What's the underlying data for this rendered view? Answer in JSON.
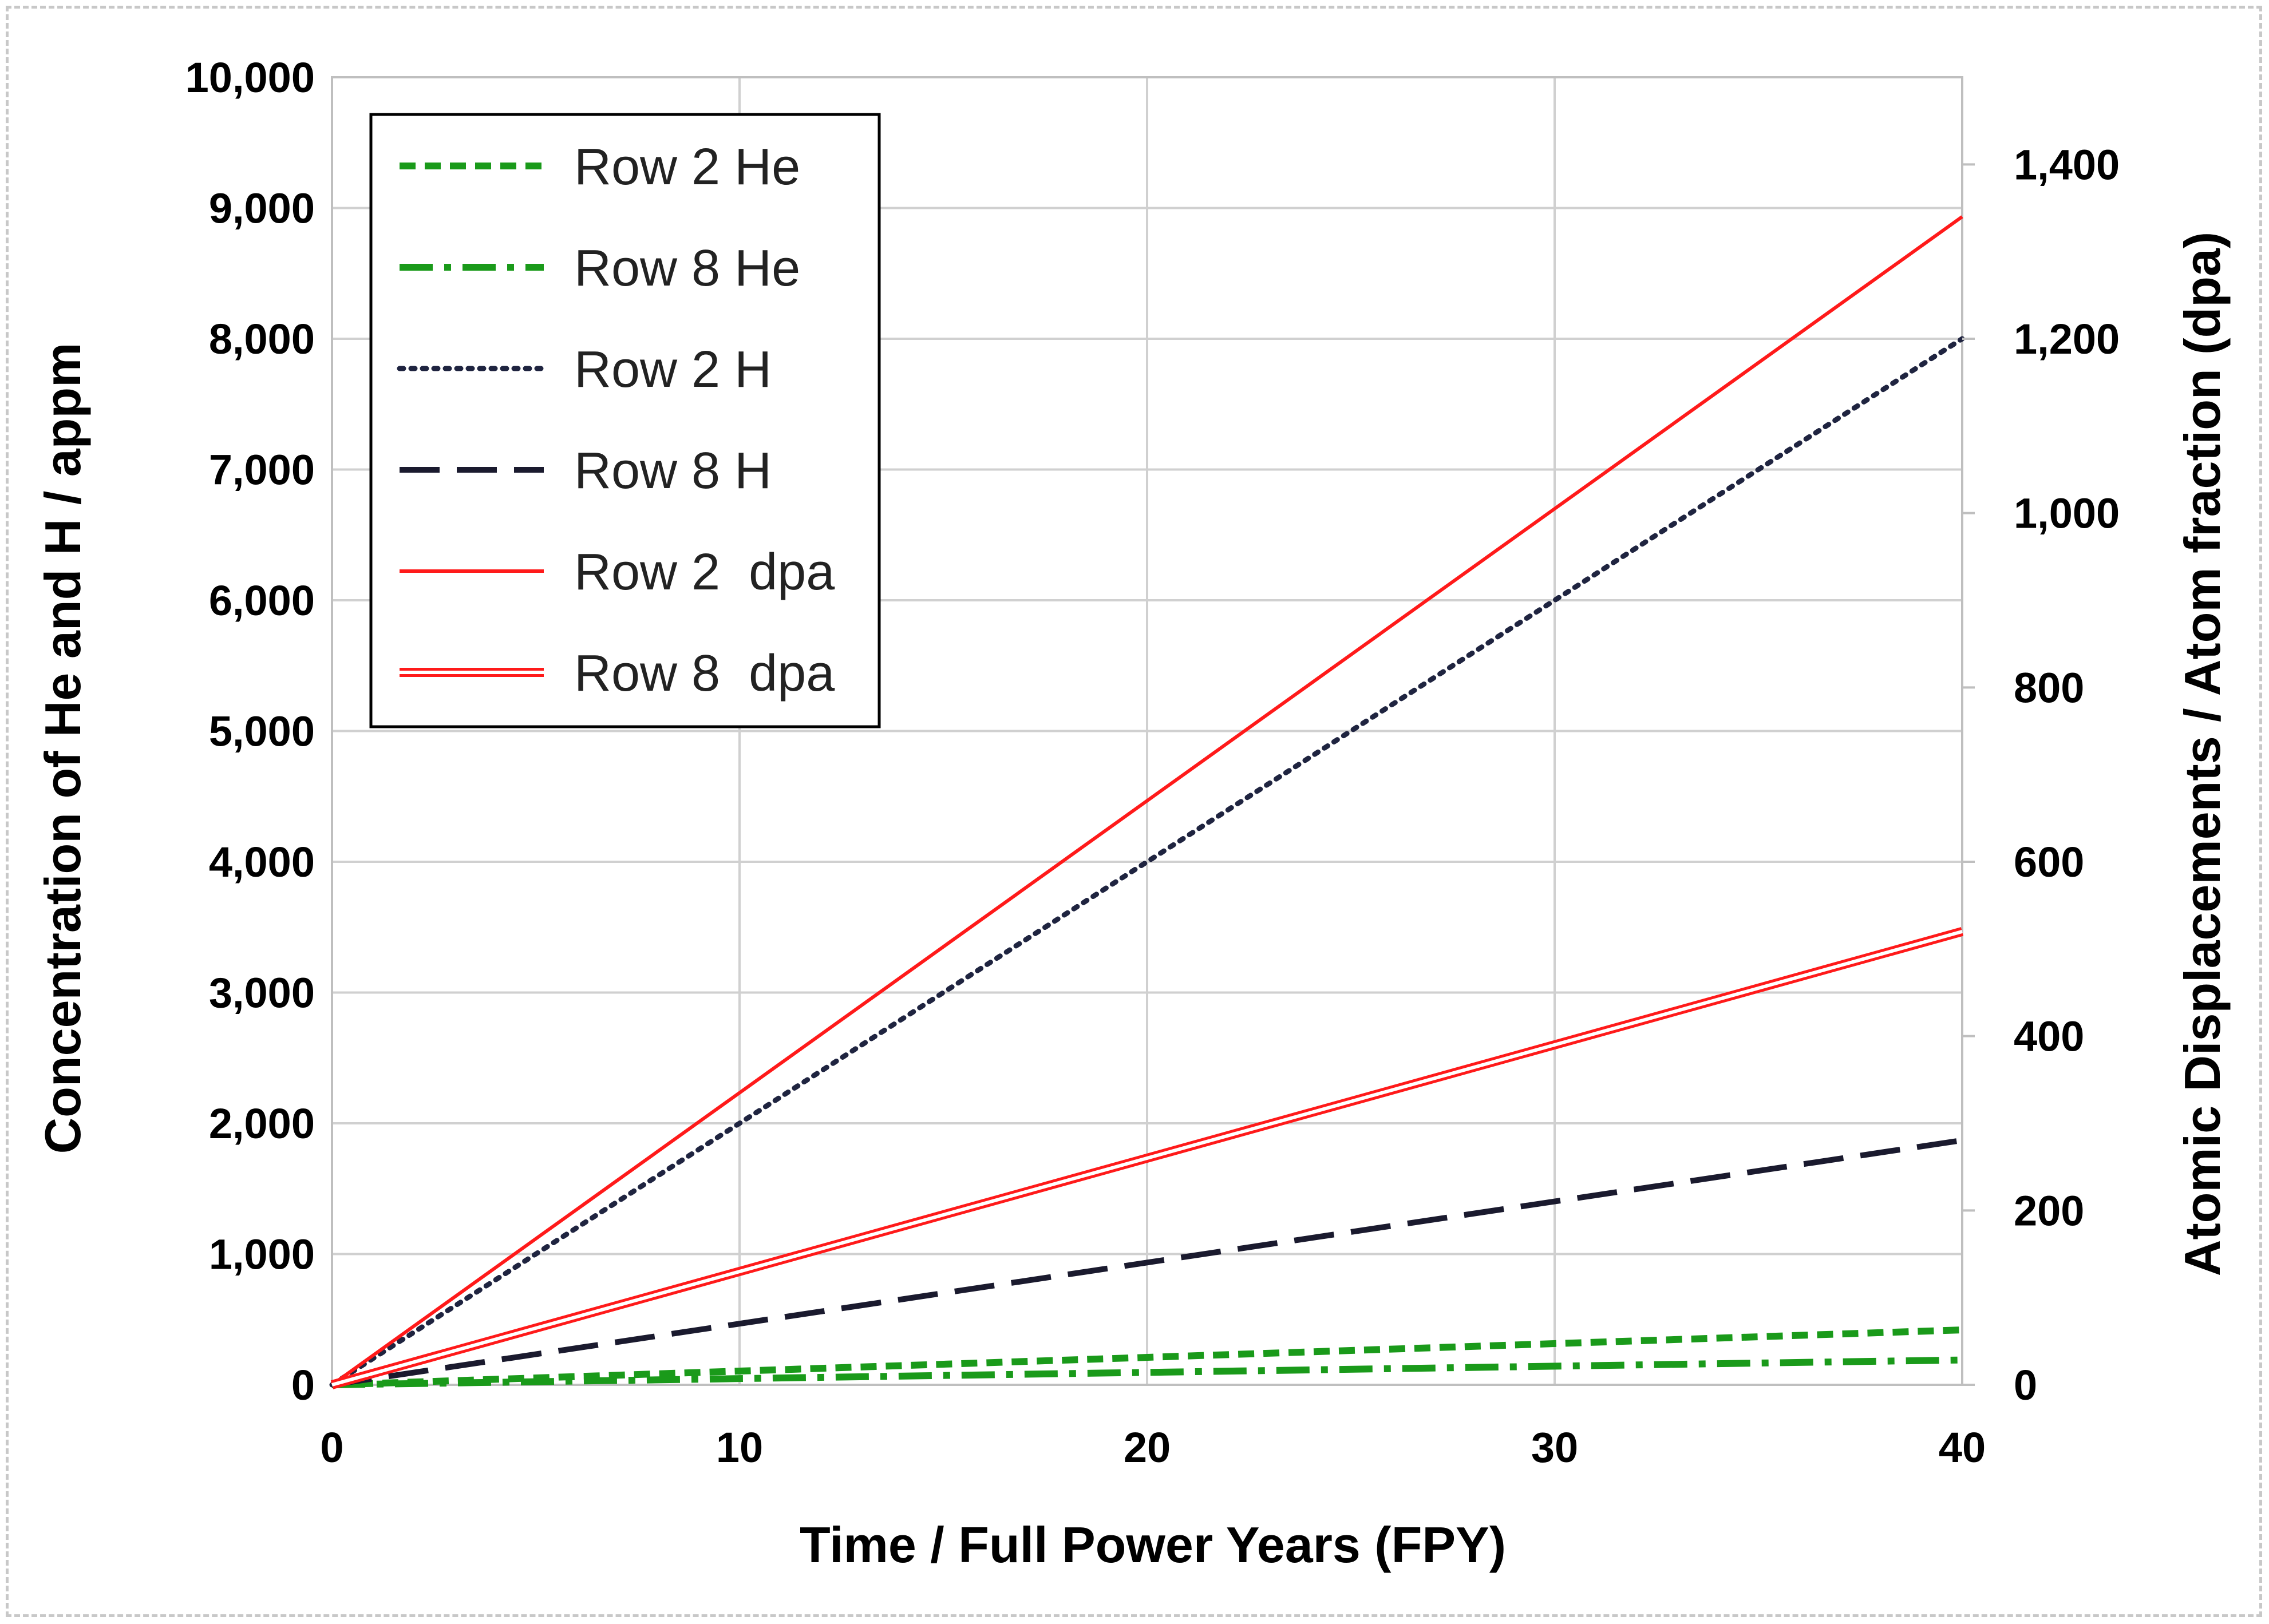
{
  "chart_data": {
    "type": "line",
    "title": "",
    "xlabel": "Time / Full Power Years (FPY)",
    "ylabel": "Concentration of He and H / appm",
    "y2label": "Atomic Displacements / Atom fraction (dpa)",
    "xlim": [
      0,
      40
    ],
    "ylim": [
      0,
      10000
    ],
    "y2lim": [
      0,
      1500
    ],
    "x_ticks": [
      "0",
      "10",
      "20",
      "30",
      "40"
    ],
    "y_ticks": [
      "0",
      "1,000",
      "2,000",
      "3,000",
      "4,000",
      "5,000",
      "6,000",
      "7,000",
      "8,000",
      "9,000",
      "10,000"
    ],
    "y2_ticks": [
      "0",
      "200",
      "400",
      "600",
      "800",
      "1,000",
      "1,200",
      "1,400"
    ],
    "grid": true,
    "legend_position": "top-left",
    "series": [
      {
        "name": "Row 2 He",
        "axis": "left",
        "x": [
          0,
          40
        ],
        "y": [
          0,
          420
        ],
        "color": "#1a9a1a",
        "style": "short-dash"
      },
      {
        "name": "Row 8 He",
        "axis": "left",
        "x": [
          0,
          40
        ],
        "y": [
          0,
          190
        ],
        "color": "#1a9a1a",
        "style": "dash-dot"
      },
      {
        "name": "Row 2 H",
        "axis": "left",
        "x": [
          0,
          40
        ],
        "y": [
          0,
          8000
        ],
        "color": "#1f2440",
        "style": "dotted"
      },
      {
        "name": "Row 8 H",
        "axis": "left",
        "x": [
          0,
          40
        ],
        "y": [
          0,
          1870
        ],
        "color": "#1a1a2e",
        "style": "long-dash"
      },
      {
        "name": "Row 2  dpa",
        "axis": "right",
        "x": [
          0,
          40
        ],
        "y": [
          0,
          1340
        ],
        "color": "#ff1a1a",
        "style": "solid"
      },
      {
        "name": "Row 8  dpa",
        "axis": "right",
        "x": [
          0,
          40
        ],
        "y": [
          0,
          520
        ],
        "color": "#ff1a1a",
        "style": "double"
      }
    ]
  }
}
